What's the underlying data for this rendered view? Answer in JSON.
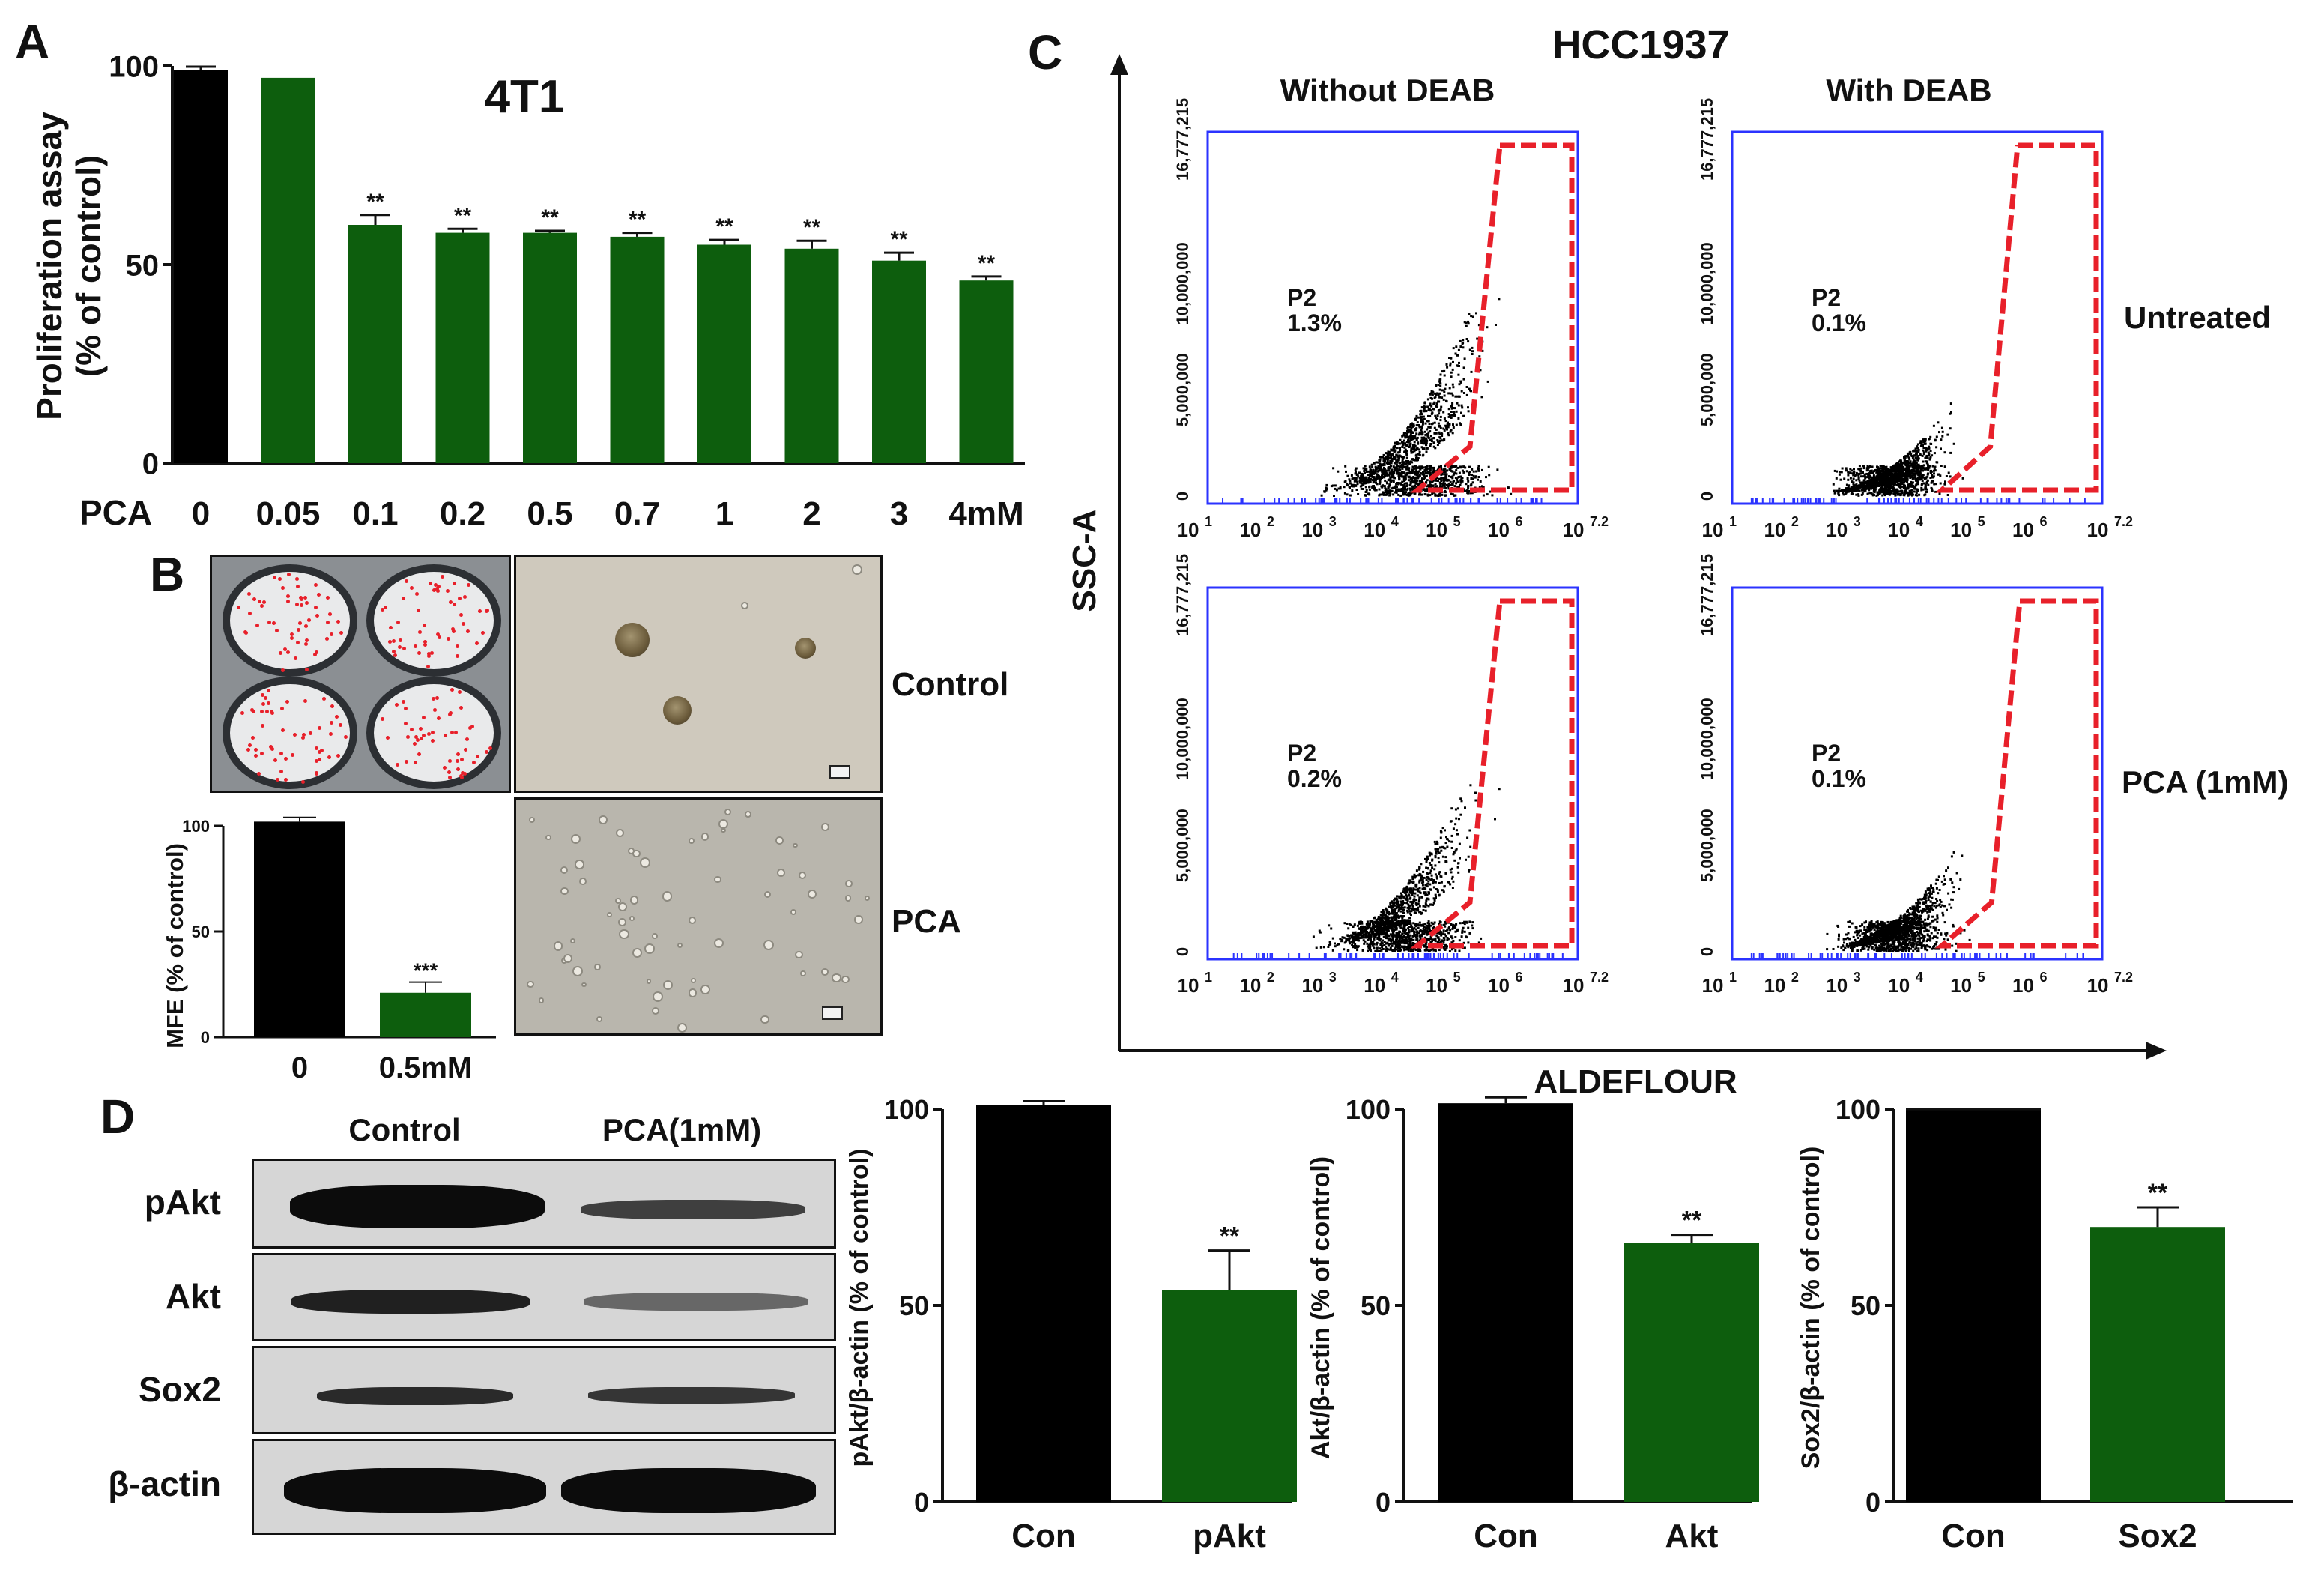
{
  "panel_labels": {
    "a": "A",
    "b": "B",
    "c": "C",
    "d": "D"
  },
  "panelA": {
    "title": "4T1",
    "ylabel_line1": "Proliferation assay",
    "ylabel_line2": "(% of control)",
    "yticks": [
      "0",
      "50",
      "100"
    ],
    "xprefix": "PCA",
    "chart_data": {
      "type": "bar",
      "title": "4T1",
      "ylabel": "Proliferation assay (% of control)",
      "xlabel": "PCA",
      "ylim": [
        0,
        100
      ],
      "categories": [
        "0",
        "0.05",
        "0.1",
        "0.2",
        "0.5",
        "0.7",
        "1",
        "2",
        "3",
        "4mM"
      ],
      "values": [
        99,
        97,
        60,
        58,
        58,
        57,
        55,
        54,
        51,
        46
      ],
      "errors": [
        0.8,
        0,
        2.5,
        1,
        0.5,
        1,
        1.2,
        2,
        2,
        1
      ],
      "significance": [
        "",
        "",
        "**",
        "**",
        "**",
        "**",
        "**",
        "**",
        "**",
        "**"
      ],
      "colors": [
        "#000000",
        "#0d5e0d",
        "#0d5e0d",
        "#0d5e0d",
        "#0d5e0d",
        "#0d5e0d",
        "#0d5e0d",
        "#0d5e0d",
        "#0d5e0d",
        "#0d5e0d"
      ]
    }
  },
  "panelB": {
    "ylabel": "MFE (% of control)",
    "yticks": [
      "0",
      "50",
      "100"
    ],
    "label_control": "Control",
    "label_pca": "PCA",
    "chart_data": {
      "type": "bar",
      "ylabel": "MFE (% of control)",
      "ylim": [
        0,
        100
      ],
      "categories": [
        "0",
        "0.5mM"
      ],
      "values": [
        102,
        21
      ],
      "errors": [
        2,
        5
      ],
      "significance": [
        "",
        "***"
      ],
      "colors": [
        "#000000",
        "#0d5e0d"
      ]
    }
  },
  "panelC": {
    "title": "HCC1937",
    "col_without": "Without DEAB",
    "col_with": "With DEAB",
    "row_untreated": "Untreated",
    "row_pca": "PCA (1mM)",
    "yaxis": "SSC-A",
    "xaxis": "ALDEFLOUR",
    "yticks": [
      "0",
      "5,000,000",
      "10,000,000",
      "16,777,215"
    ],
    "xticks": [
      "10",
      "10",
      "10",
      "10",
      "10",
      "10",
      "10"
    ],
    "xtick_exps": [
      "1",
      "2",
      "3",
      "4",
      "5",
      "6",
      "7.2"
    ],
    "chart_data": {
      "type": "scatter",
      "title": "HCC1937",
      "xlabel": "ALDEFLOUR",
      "ylabel": "SSC-A",
      "xlim_log10": [
        1,
        7.2
      ],
      "ylim": [
        0,
        16777215
      ],
      "plots": [
        {
          "condition": "Untreated",
          "deab": "Without DEAB",
          "gate": "P2",
          "percent": "1.3%"
        },
        {
          "condition": "Untreated",
          "deab": "With DEAB",
          "gate": "P2",
          "percent": "0.1%"
        },
        {
          "condition": "PCA (1mM)",
          "deab": "Without DEAB",
          "gate": "P2",
          "percent": "0.2%"
        },
        {
          "condition": "PCA (1mM)",
          "deab": "With DEAB",
          "gate": "P2",
          "percent": "0.1%"
        }
      ]
    }
  },
  "panelD": {
    "blot_col_control": "Control",
    "blot_col_pca": "PCA(1mM)",
    "blot_rows": [
      "pAkt",
      "Akt",
      "Sox2",
      "β-actin"
    ],
    "yticks": [
      "0",
      "50",
      "100"
    ],
    "chart_data": [
      {
        "type": "bar",
        "ylabel": "pAkt/β-actin (% of  control)",
        "ylim": [
          0,
          100
        ],
        "categories": [
          "Con",
          "pAkt"
        ],
        "values": [
          101,
          54
        ],
        "errors": [
          1,
          10
        ],
        "significance": [
          "",
          "**"
        ],
        "colors": [
          "#000000",
          "#0d5e0d"
        ]
      },
      {
        "type": "bar",
        "ylabel": "Akt/β-actin (% of  control)",
        "ylim": [
          0,
          100
        ],
        "categories": [
          "Con",
          "Akt"
        ],
        "values": [
          101.5,
          66
        ],
        "errors": [
          1.5,
          2
        ],
        "significance": [
          "",
          "**"
        ],
        "colors": [
          "#000000",
          "#0d5e0d"
        ]
      },
      {
        "type": "bar",
        "ylabel": "Sox2/β-actin (% of  control)",
        "ylim": [
          0,
          100
        ],
        "categories": [
          "Con",
          "Sox2"
        ],
        "values": [
          100,
          70
        ],
        "errors": [
          0,
          5
        ],
        "significance": [
          "",
          "**"
        ],
        "colors": [
          "#000000",
          "#0d5e0d"
        ]
      }
    ]
  }
}
